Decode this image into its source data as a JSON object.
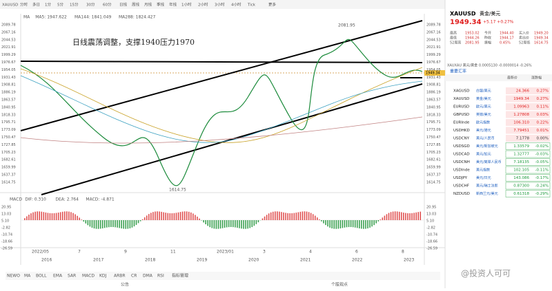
{
  "toolbar": [
    "XAUUSD",
    "分时",
    "多日",
    "1分",
    "5分",
    "15分",
    "30分",
    "60分",
    "日线",
    "周线",
    "月线",
    "季线",
    "年线",
    "1小时",
    "2小时",
    "3小时",
    "4小时",
    "Tick",
    "更多"
  ],
  "indicators": [
    "MA",
    "MA5: 1947.622",
    "MA144: 1841.049",
    "MA288: 1824.427"
  ],
  "annotation": "日线震荡调整，支撑1940压力1970",
  "high_label": "2081.95",
  "low_label": "1614.75",
  "last_label": "1949.34",
  "price_axis": [
    "2089.78",
    "2067.16",
    "2044.53",
    "2021.91",
    "1999.29",
    "1976.67",
    "1954.05",
    "1931.43",
    "1908.81",
    "1886.19",
    "1863.57",
    "1840.95",
    "1818.33",
    "1795.71",
    "1773.09",
    "1750.47",
    "1727.85",
    "1705.23",
    "1682.61",
    "1659.99",
    "1637.37",
    "1614.75"
  ],
  "macd": {
    "labels": [
      "MACD",
      "DIF: 0.310",
      "DEA: 2.764",
      "MACD: -4.871"
    ],
    "axis": [
      "20.95",
      "13.03",
      "5.10",
      "-2.82",
      "-10.74",
      "-18.66",
      "-26.59"
    ]
  },
  "dates_top": [
    "2022/05",
    "7",
    "9",
    "11",
    "2023/01",
    "3",
    "4",
    "6",
    "8"
  ],
  "dates_bottom": [
    "2016",
    "2017",
    "2018",
    "2019",
    "2020",
    "2021",
    "2022",
    "2023"
  ],
  "tabs": [
    "NEWO",
    "MA",
    "BOLL",
    "EMA",
    "SAR",
    "MACD",
    "KDJ",
    "ARBR",
    "CR",
    "DMA",
    "RSI",
    "指标管理"
  ],
  "footer": [
    "公告",
    "个股观点"
  ],
  "quote": {
    "symbol": "XAUUSD",
    "name": "黄金/美元",
    "price": "1949.34",
    "change": "+5.17 +0.27%",
    "stats": [
      [
        "最高",
        "1953.02"
      ],
      [
        "今开",
        "1944.40"
      ],
      [
        "买入价",
        "1949.20"
      ],
      [
        "最低",
        "1944.26"
      ],
      [
        "昨收",
        "1944.17"
      ],
      [
        "卖出价",
        "1949.34"
      ],
      [
        "52周高",
        "2081.95"
      ],
      [
        "振幅",
        "0.45%"
      ],
      [
        "52周低",
        "1614.75"
      ]
    ]
  },
  "ticker": "XAUXAU 美元/黄金 0.0005130 -0.0000014 -0.26%",
  "rates": {
    "title": "重要汇率",
    "columns": [
      "最新价",
      "涨跌幅"
    ],
    "rows": [
      [
        "XAGUSD",
        "白银/美元",
        "24.366",
        "0.27%"
      ],
      [
        "XAUUSD",
        "黄金/美元",
        "1949.34",
        "0.27%"
      ],
      [
        "EURUSD",
        "欧元/美元",
        "1.09963",
        "0.11%"
      ],
      [
        "GBPUSD",
        "英镑/美元",
        "1.27808",
        "0.03%"
      ],
      [
        "EURInde",
        "欧元指数",
        "106.310",
        "0.22%"
      ],
      [
        "USDHKD",
        "美元/港元",
        "7.79451",
        "0.01%"
      ],
      [
        "USDCNY",
        "美元/人民币",
        "7.1778",
        "0.00%"
      ],
      [
        "USDSGD",
        "美元/新加坡元",
        "1.33579",
        "-0.02%"
      ],
      [
        "USDCAD",
        "美元/加元",
        "1.32777",
        "-0.03%"
      ],
      [
        "USDCNH",
        "美元/离岸人民币",
        "7.18135",
        "-0.05%"
      ],
      [
        "USDInde",
        "美元指数",
        "102.105",
        "-0.11%"
      ],
      [
        "USDJPY",
        "美元/日元",
        "143.086",
        "-0.17%"
      ],
      [
        "USDCHF",
        "美元/瑞士法郎",
        "0.87300",
        "-0.24%"
      ],
      [
        "NZDUSD",
        "新西兰元/美元",
        "0.61318",
        "-0.29%"
      ]
    ]
  },
  "watermark": "@投资人可可"
}
